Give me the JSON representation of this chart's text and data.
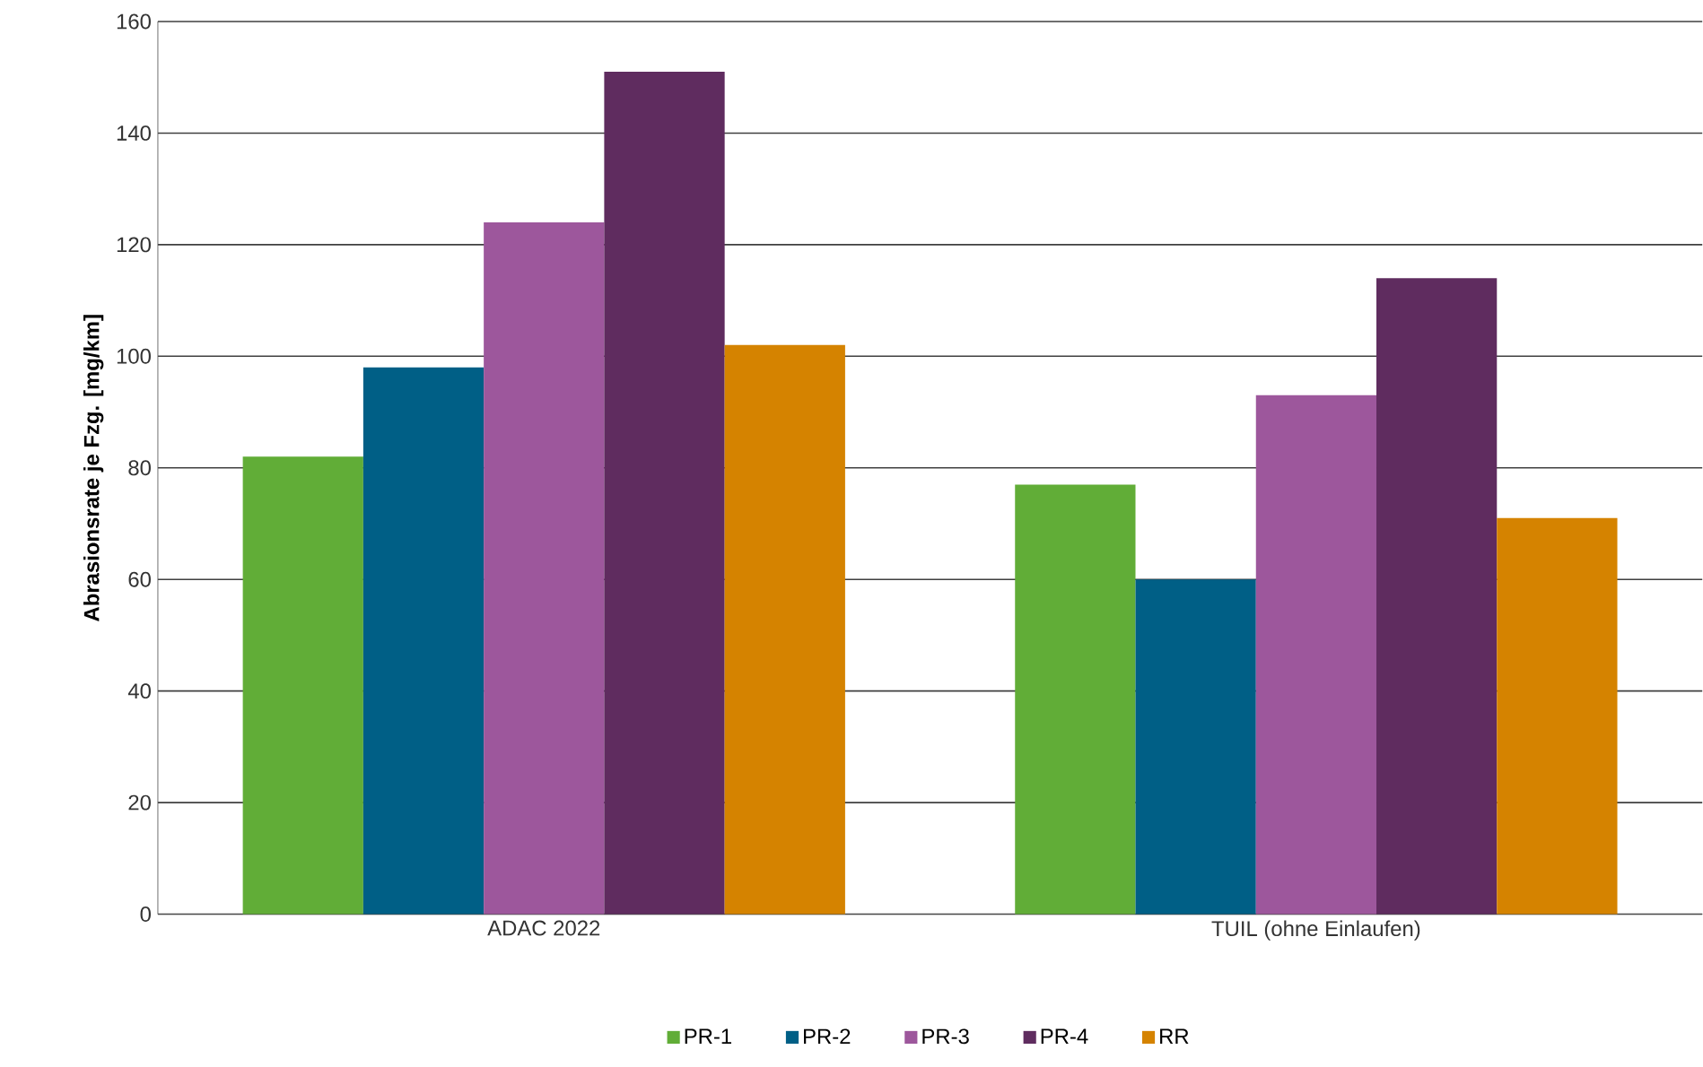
{
  "chart_data": {
    "type": "bar",
    "ylabel": "Abrasionsrate  je Fzg. [mg/km]",
    "categories": [
      "ADAC 2022",
      "TUIL (ohne Einlaufen)"
    ],
    "series": [
      {
        "name": "PR-1",
        "color": "#61ad37",
        "values": [
          82,
          77
        ]
      },
      {
        "name": "PR-2",
        "color": "#005f86",
        "values": [
          98,
          60
        ]
      },
      {
        "name": "PR-3",
        "color": "#9d579c",
        "values": [
          124,
          93
        ]
      },
      {
        "name": "PR-4",
        "color": "#5f2c5f",
        "values": [
          151,
          114
        ]
      },
      {
        "name": "RR",
        "color": "#d58300",
        "values": [
          102,
          71
        ]
      }
    ],
    "ylim": [
      0,
      160
    ],
    "yticks": [
      0,
      20,
      40,
      60,
      80,
      100,
      120,
      140,
      160
    ],
    "grid": "y",
    "legend": "bottom"
  }
}
